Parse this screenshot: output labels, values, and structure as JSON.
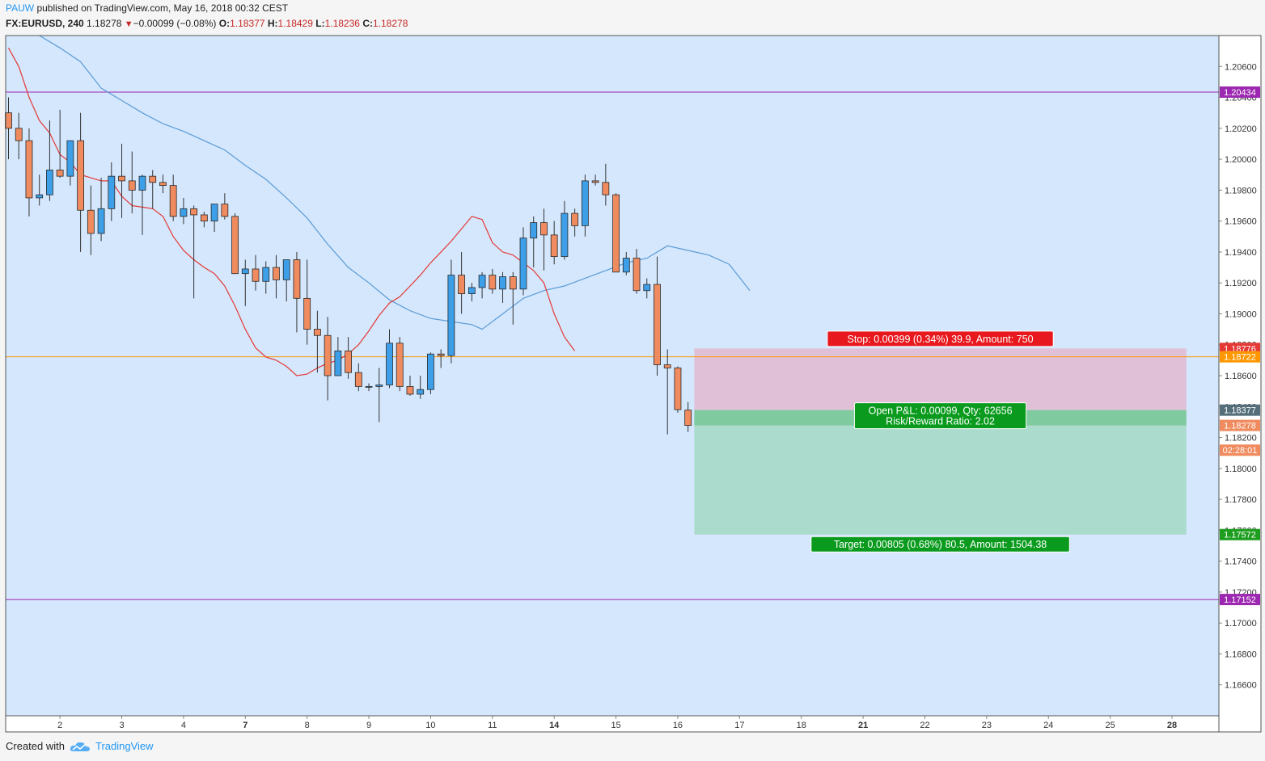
{
  "header": {
    "user": "PAUW",
    "published_text": "published on TradingView.com, May 16, 2018 00:32 CEST",
    "symbol": "FX:EURUSD, 240",
    "last": "1.18278",
    "change": "−0.00099 (−0.08%)",
    "open_label": "O:",
    "open_value": "1.18377",
    "high_label": "H:",
    "high_value": "1.18429",
    "low_label": "L:",
    "low_value": "1.18236",
    "close_label": "C:",
    "close_value": "1.18278"
  },
  "footer": {
    "created_with": "Created with",
    "brand": "TradingView",
    "logo_icon": "tradingview-cloud-icon"
  },
  "colors": {
    "background": "#d4e7fd",
    "bull": "#3d9fe8",
    "bear": "#ef8b5e",
    "wick": "#333333",
    "ema_fast": "#e53935",
    "ema_slow": "#5b9bd5",
    "hline_purple": "#9c27b0",
    "hline_orange": "#ff9800",
    "stop_zone": "#e0b8d0",
    "target_zone": "#a6d9c8",
    "entry_band": "#80caa0"
  },
  "chart_data": {
    "type": "candlestick",
    "symbol": "FX:EURUSD",
    "interval": "240",
    "ylim": [
      1.164,
      1.208
    ],
    "yticks": [
      "1.20600",
      "1.20400",
      "1.20200",
      "1.20000",
      "1.19800",
      "1.19600",
      "1.19400",
      "1.19200",
      "1.19000",
      "1.18800",
      "1.18600",
      "1.18400",
      "1.18200",
      "1.18000",
      "1.17800",
      "1.17600",
      "1.17400",
      "1.17200",
      "1.17000",
      "1.16800",
      "1.16600"
    ],
    "xticks": [
      {
        "label": "2",
        "i": 5,
        "bold": false
      },
      {
        "label": "3",
        "i": 11,
        "bold": false
      },
      {
        "label": "4",
        "i": 17,
        "bold": false
      },
      {
        "label": "7",
        "i": 23,
        "bold": true
      },
      {
        "label": "8",
        "i": 29,
        "bold": false
      },
      {
        "label": "9",
        "i": 35,
        "bold": false
      },
      {
        "label": "10",
        "i": 41,
        "bold": false
      },
      {
        "label": "11",
        "i": 47,
        "bold": false
      },
      {
        "label": "14",
        "i": 53,
        "bold": true
      },
      {
        "label": "15",
        "i": 59,
        "bold": false
      },
      {
        "label": "16",
        "i": 65,
        "bold": false
      },
      {
        "label": "17",
        "i": 71,
        "bold": false
      },
      {
        "label": "18",
        "i": 77,
        "bold": false
      },
      {
        "label": "21",
        "i": 83,
        "bold": true
      },
      {
        "label": "22",
        "i": 89,
        "bold": false
      },
      {
        "label": "23",
        "i": 95,
        "bold": false
      },
      {
        "label": "24",
        "i": 101,
        "bold": false
      },
      {
        "label": "25",
        "i": 107,
        "bold": false
      },
      {
        "label": "28",
        "i": 113,
        "bold": true
      }
    ],
    "candles": [
      [
        1.203,
        1.204,
        1.2,
        1.202
      ],
      [
        1.202,
        1.203,
        1.2,
        1.2012
      ],
      [
        1.2012,
        1.202,
        1.1963,
        1.1975
      ],
      [
        1.1975,
        1.199,
        1.197,
        1.1977
      ],
      [
        1.1977,
        1.2025,
        1.1973,
        1.1993
      ],
      [
        1.1993,
        1.2032,
        1.1988,
        1.1989
      ],
      [
        1.1989,
        1.2012,
        1.1983,
        1.2012
      ],
      [
        1.2012,
        1.203,
        1.194,
        1.1967
      ],
      [
        1.1967,
        1.1983,
        1.1938,
        1.1952
      ],
      [
        1.1952,
        1.1988,
        1.1947,
        1.1968
      ],
      [
        1.1968,
        1.1998,
        1.196,
        1.1989
      ],
      [
        1.1989,
        1.201,
        1.1962,
        1.1986
      ],
      [
        1.1986,
        1.2005,
        1.1965,
        1.198
      ],
      [
        1.198,
        1.199,
        1.1951,
        1.1989
      ],
      [
        1.1989,
        1.1993,
        1.1968,
        1.1985
      ],
      [
        1.1985,
        1.199,
        1.1978,
        1.1983
      ],
      [
        1.1983,
        1.199,
        1.196,
        1.1963
      ],
      [
        1.1963,
        1.1975,
        1.1958,
        1.1968
      ],
      [
        1.1968,
        1.197,
        1.191,
        1.1964
      ],
      [
        1.1964,
        1.1966,
        1.1956,
        1.196
      ],
      [
        1.196,
        1.197,
        1.1953,
        1.1971
      ],
      [
        1.1971,
        1.1978,
        1.1961,
        1.1963
      ],
      [
        1.1963,
        1.1965,
        1.193,
        1.1926
      ],
      [
        1.1926,
        1.1935,
        1.1905,
        1.1929
      ],
      [
        1.1929,
        1.1938,
        1.1915,
        1.1921
      ],
      [
        1.1921,
        1.1934,
        1.1913,
        1.193
      ],
      [
        1.193,
        1.1938,
        1.191,
        1.1922
      ],
      [
        1.1922,
        1.1935,
        1.1908,
        1.1935
      ],
      [
        1.1935,
        1.194,
        1.1888,
        1.191
      ],
      [
        1.191,
        1.1935,
        1.188,
        1.189
      ],
      [
        1.189,
        1.1902,
        1.1862,
        1.1886
      ],
      [
        1.1886,
        1.1898,
        1.1844,
        1.186
      ],
      [
        1.186,
        1.1885,
        1.186,
        1.1876
      ],
      [
        1.1876,
        1.1885,
        1.1858,
        1.1862
      ],
      [
        1.1862,
        1.1868,
        1.185,
        1.1853
      ],
      [
        1.1853,
        1.1855,
        1.185,
        1.1853
      ],
      [
        1.1853,
        1.1865,
        1.183,
        1.1854
      ],
      [
        1.1854,
        1.189,
        1.1852,
        1.1881
      ],
      [
        1.1881,
        1.1885,
        1.185,
        1.1853
      ],
      [
        1.1853,
        1.186,
        1.1847,
        1.1848
      ],
      [
        1.1848,
        1.186,
        1.1845,
        1.1851
      ],
      [
        1.1851,
        1.1875,
        1.1848,
        1.1874
      ],
      [
        1.1874,
        1.1877,
        1.1865,
        1.1873
      ],
      [
        1.1873,
        1.1935,
        1.1868,
        1.1925
      ],
      [
        1.1925,
        1.194,
        1.19,
        1.1913
      ],
      [
        1.1913,
        1.192,
        1.1908,
        1.1917
      ],
      [
        1.1917,
        1.1927,
        1.191,
        1.1925
      ],
      [
        1.1925,
        1.1929,
        1.1913,
        1.1916
      ],
      [
        1.1916,
        1.1927,
        1.1907,
        1.1924
      ],
      [
        1.1924,
        1.1927,
        1.1893,
        1.1916
      ],
      [
        1.1916,
        1.1956,
        1.1912,
        1.1949
      ],
      [
        1.1949,
        1.1963,
        1.193,
        1.1959
      ],
      [
        1.1959,
        1.1968,
        1.1928,
        1.1951
      ],
      [
        1.1951,
        1.196,
        1.1932,
        1.1937
      ],
      [
        1.1937,
        1.1973,
        1.1935,
        1.1965
      ],
      [
        1.1965,
        1.1968,
        1.195,
        1.1957
      ],
      [
        1.1957,
        1.199,
        1.195,
        1.1986
      ],
      [
        1.1986,
        1.199,
        1.1983,
        1.1985
      ],
      [
        1.1985,
        1.1997,
        1.197,
        1.1977
      ],
      [
        1.1977,
        1.1978,
        1.1927,
        1.1927
      ],
      [
        1.1927,
        1.194,
        1.1925,
        1.1936
      ],
      [
        1.1936,
        1.1942,
        1.1913,
        1.1915
      ],
      [
        1.1915,
        1.1923,
        1.191,
        1.1919
      ],
      [
        1.1919,
        1.1937,
        1.186,
        1.1867
      ],
      [
        1.1867,
        1.1877,
        1.1822,
        1.1865
      ],
      [
        1.1865,
        1.1866,
        1.1836,
        1.1838
      ],
      [
        1.18377,
        1.18429,
        1.18236,
        1.18278
      ]
    ],
    "ema_fast_name": "EMA (fast)",
    "ema_slow_name": "EMA (slow)",
    "ema_fast": [
      [
        0,
        1.2072
      ],
      [
        2,
        1.206
      ],
      [
        4,
        1.204
      ],
      [
        6,
        1.2025
      ],
      [
        8,
        1.2017
      ],
      [
        10,
        1.2003
      ],
      [
        12,
        1.1998
      ],
      [
        14,
        1.199
      ],
      [
        16,
        1.1988
      ],
      [
        18,
        1.1986
      ],
      [
        20,
        1.1986
      ],
      [
        22,
        1.1976
      ],
      [
        24,
        1.197
      ],
      [
        26,
        1.1969
      ],
      [
        28,
        1.1968
      ],
      [
        30,
        1.1963
      ],
      [
        32,
        1.195
      ],
      [
        34,
        1.1941
      ],
      [
        36,
        1.1935
      ],
      [
        38,
        1.193
      ],
      [
        40,
        1.1926
      ],
      [
        42,
        1.1918
      ],
      [
        44,
        1.1905
      ],
      [
        46,
        1.189
      ],
      [
        48,
        1.1878
      ],
      [
        50,
        1.1872
      ],
      [
        52,
        1.187
      ],
      [
        54,
        1.1866
      ],
      [
        56,
        1.186
      ],
      [
        58,
        1.1861
      ],
      [
        60,
        1.1865
      ],
      [
        62,
        1.1868
      ],
      [
        64,
        1.187
      ],
      [
        66,
        1.1874
      ],
      [
        68,
        1.188
      ],
      [
        70,
        1.1889
      ],
      [
        72,
        1.1899
      ],
      [
        74,
        1.1907
      ],
      [
        76,
        1.1911
      ],
      [
        78,
        1.1918
      ],
      [
        80,
        1.1925
      ],
      [
        82,
        1.1933
      ],
      [
        84,
        1.194
      ],
      [
        86,
        1.1947
      ],
      [
        88,
        1.1955
      ],
      [
        90,
        1.1963
      ],
      [
        92,
        1.1961
      ],
      [
        94,
        1.1946
      ],
      [
        96,
        1.194
      ],
      [
        98,
        1.1938
      ],
      [
        100,
        1.1933
      ],
      [
        102,
        1.1928
      ],
      [
        104,
        1.192
      ],
      [
        106,
        1.19
      ],
      [
        108,
        1.1885
      ],
      [
        110,
        1.1876
      ]
    ],
    "ema_slow": [
      [
        6,
        1.208
      ],
      [
        10,
        1.2072
      ],
      [
        14,
        1.2063
      ],
      [
        18,
        1.2046
      ],
      [
        22,
        1.2038
      ],
      [
        26,
        1.203
      ],
      [
        30,
        1.2023
      ],
      [
        34,
        1.2018
      ],
      [
        38,
        1.2012
      ],
      [
        42,
        1.2006
      ],
      [
        46,
        1.1996
      ],
      [
        50,
        1.1987
      ],
      [
        54,
        1.1975
      ],
      [
        58,
        1.1962
      ],
      [
        62,
        1.1945
      ],
      [
        66,
        1.193
      ],
      [
        70,
        1.192
      ],
      [
        74,
        1.1909
      ],
      [
        78,
        1.1902
      ],
      [
        82,
        1.1897
      ],
      [
        86,
        1.1895
      ],
      [
        90,
        1.1893
      ],
      [
        92,
        1.189
      ],
      [
        96,
        1.19
      ],
      [
        100,
        1.191
      ],
      [
        104,
        1.1915
      ],
      [
        108,
        1.1918
      ],
      [
        112,
        1.1923
      ],
      [
        116,
        1.1928
      ],
      [
        120,
        1.1933
      ],
      [
        124,
        1.1936
      ],
      [
        128,
        1.1944
      ],
      [
        132,
        1.1941
      ],
      [
        136,
        1.1938
      ],
      [
        140,
        1.1932
      ],
      [
        144,
        1.1915
      ]
    ],
    "horizontal_lines": [
      {
        "price": 1.20434,
        "label": "1.20434",
        "color": "#9c27b0"
      },
      {
        "price": 1.17152,
        "label": "1.17152",
        "color": "#9c27b0"
      },
      {
        "price": 1.18722,
        "label": "1.18722",
        "color": "#ff9800"
      }
    ],
    "position": {
      "type": "short",
      "entry": 1.18377,
      "stop": 1.18776,
      "target": 1.17572,
      "current": 1.18278,
      "start_index": 67,
      "end_index": 114,
      "stop_label": "Stop: 0.00399 (0.34%) 39.9, Amount: 750",
      "pnl_label": "Open P&L: 0.00099, Qty: 62656",
      "rr_label": "Risk/Reward Ratio: 2.02",
      "target_label": "Target: 0.00805 (0.68%) 80.5, Amount: 1504.38"
    },
    "price_tags": [
      {
        "label": "1.18776",
        "price": 1.18776,
        "color": "#e53935"
      },
      {
        "label": "1.18722",
        "price": 1.18722,
        "color": "#ff9800"
      },
      {
        "label": "1.18377",
        "price": 1.18377,
        "color": "#546e7a"
      },
      {
        "label": "1.18278",
        "price": 1.18278,
        "color": "#ef8b5e"
      },
      {
        "label": "02:28:01",
        "price": 1.18118,
        "color": "#ef8b5e"
      },
      {
        "label": "1.17572",
        "price": 1.17572,
        "color": "#1e9e1e"
      }
    ]
  }
}
